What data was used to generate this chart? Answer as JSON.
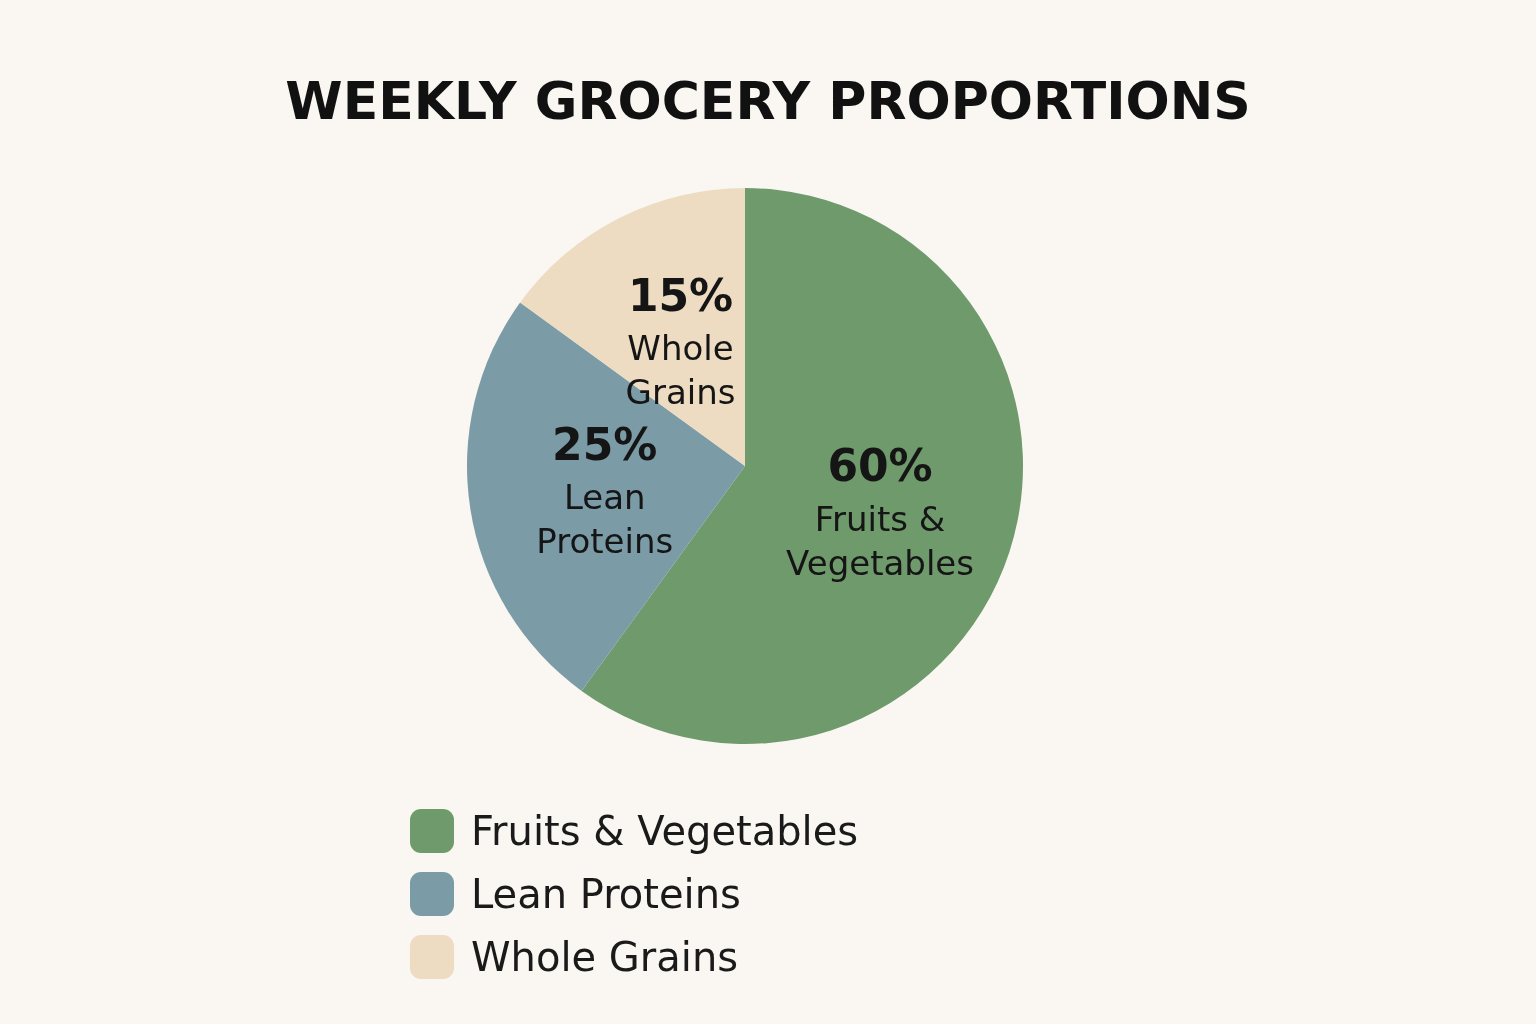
{
  "chart_data": {
    "type": "pie",
    "title": "WEEKLY GROCERY PROPORTIONS",
    "categories": [
      "Fruits & Vegetables",
      "Lean Proteins",
      "Whole Grains"
    ],
    "values": [
      60,
      25,
      15
    ],
    "value_labels": [
      "60%",
      "25%",
      "15%"
    ],
    "colors": [
      "#6f9a6c",
      "#7b9ca6",
      "#eddcc1"
    ],
    "legend": "bottom"
  }
}
